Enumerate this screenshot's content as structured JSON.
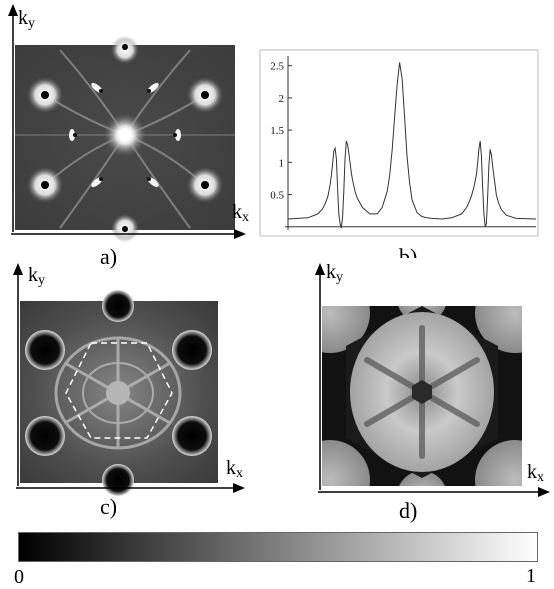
{
  "figure": {
    "panels": [
      {
        "id": "a",
        "label": "a)",
        "xaxis": "k",
        "xaxis_sub": "x",
        "yaxis": "k",
        "yaxis_sub": "y"
      },
      {
        "id": "b",
        "label": "b)"
      },
      {
        "id": "c",
        "label": "c)",
        "xaxis": "k",
        "xaxis_sub": "x",
        "yaxis": "k",
        "yaxis_sub": "y"
      },
      {
        "id": "d",
        "label": "d)",
        "xaxis": "k",
        "xaxis_sub": "x",
        "yaxis": "k",
        "yaxis_sub": "y"
      }
    ],
    "colorbar": {
      "min_label": "0",
      "max_label": "1",
      "from_color": "#000000",
      "to_color": "#ffffff"
    }
  },
  "chart_data": {
    "type": "line",
    "title": "",
    "xlabel": "",
    "ylabel": "",
    "yticks": [
      "0.5",
      "1",
      "1.5",
      "2",
      "2.5"
    ],
    "ylim": [
      -0.05,
      2.65
    ],
    "xlim": [
      0,
      100
    ],
    "grid": false,
    "series": [
      {
        "x": [
          0,
          8,
          12,
          14,
          15,
          16,
          16.5,
          17,
          17.5,
          18,
          18.5,
          19,
          19.5,
          20,
          20.5,
          21,
          21.5,
          22,
          22.5,
          23,
          23.5,
          24,
          24.5,
          25,
          25.5,
          26,
          27,
          28,
          30,
          33,
          36,
          38,
          40,
          41,
          42,
          43,
          44,
          45,
          46,
          47,
          48,
          49,
          50,
          52,
          54,
          56,
          58,
          62,
          66,
          70,
          72,
          73,
          74,
          75,
          76,
          76.5,
          77,
          77.5,
          78,
          78.5,
          79,
          79.5,
          80,
          80.5,
          81,
          81.5,
          82,
          82.5,
          83,
          83.5,
          84,
          85,
          86,
          88,
          92,
          100
        ],
        "y": [
          0.12,
          0.14,
          0.2,
          0.28,
          0.36,
          0.46,
          0.55,
          0.66,
          0.8,
          0.98,
          1.18,
          1.22,
          1.05,
          0.6,
          0.2,
          0.05,
          -0.02,
          0.15,
          0.55,
          1.05,
          1.33,
          1.28,
          1.15,
          1.0,
          0.85,
          0.73,
          0.55,
          0.44,
          0.3,
          0.2,
          0.2,
          0.3,
          0.55,
          0.8,
          1.2,
          1.7,
          2.2,
          2.55,
          2.3,
          1.7,
          1.1,
          0.7,
          0.42,
          0.22,
          0.16,
          0.14,
          0.13,
          0.12,
          0.14,
          0.2,
          0.3,
          0.38,
          0.48,
          0.62,
          0.82,
          1.0,
          1.22,
          1.33,
          1.1,
          0.6,
          0.2,
          0.0,
          0.05,
          0.45,
          0.95,
          1.2,
          1.12,
          0.95,
          0.8,
          0.65,
          0.5,
          0.36,
          0.27,
          0.18,
          0.13,
          0.12
        ]
      }
    ]
  }
}
